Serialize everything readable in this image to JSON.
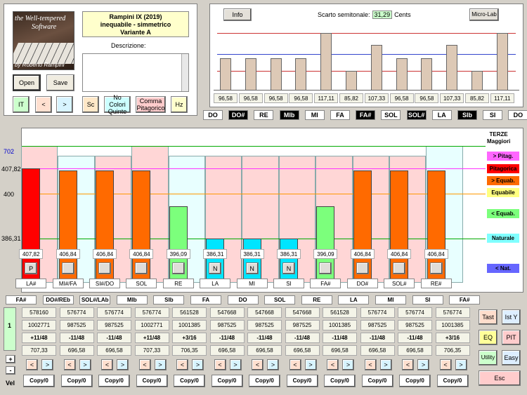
{
  "header": {
    "logo_line1": "the Well-tempered",
    "logo_line2": "Software",
    "logo_author": "by Roberto Rampini",
    "title_line1": "Rampini IX (2019)",
    "title_line2": "inequabile - simmetrico",
    "title_line3": "Variante A",
    "desc_label": "Descrizione:"
  },
  "buttons": {
    "open": "Open",
    "save": "Save",
    "it": "IT",
    "prev": "<",
    "next": ">",
    "sc": "Sc",
    "no_colori_1": "No Colori",
    "no_colori_2": "Quinte",
    "comma_1": "Comma",
    "comma_2": "Pitagorico",
    "hz": "Hz",
    "info": "Info",
    "microlab": "Micro-Lab",
    "tast": "Tast",
    "isty": "Ist Y",
    "eq": "EQ",
    "pit": "PIT",
    "utility": "Utility",
    "easy": "Easy",
    "esc": "Esc",
    "plus": "+",
    "minus": "-",
    "vel": "Vel"
  },
  "top_chart": {
    "scarto_label": "Scarto semitonale:",
    "scarto_value": "31,29",
    "scarto_unit": "Cents",
    "values": [
      "96,58",
      "96,58",
      "96,58",
      "96,58",
      "117,11",
      "85,82",
      "107,33",
      "96,58",
      "96,58",
      "107,33",
      "85,82",
      "117,11"
    ],
    "heights": [
      96.58,
      96.58,
      96.58,
      96.58,
      117.11,
      85.82,
      107.33,
      96.58,
      96.58,
      107.33,
      85.82,
      117.11
    ],
    "notes": [
      {
        "name": "DO",
        "dark": false
      },
      {
        "name": "DO#",
        "dark": true
      },
      {
        "name": "RE",
        "dark": false
      },
      {
        "name": "MIb",
        "dark": true
      },
      {
        "name": "MI",
        "dark": false
      },
      {
        "name": "FA",
        "dark": false
      },
      {
        "name": "FA#",
        "dark": true
      },
      {
        "name": "SOL",
        "dark": false
      },
      {
        "name": "SOL#",
        "dark": true
      },
      {
        "name": "LA",
        "dark": false
      },
      {
        "name": "SIb",
        "dark": true
      },
      {
        "name": "SI",
        "dark": false
      },
      {
        "name": "DO",
        "dark": false
      }
    ]
  },
  "main_chart": {
    "y_labels": {
      "v702": "702",
      "v40782": "407,82",
      "v400": "400",
      "v38631": "386,31"
    },
    "legend": {
      "terze_1": "TERZE",
      "terze_2": "Maggiori",
      "pitag_plus": "> Pitag.",
      "pitagorica": "Pitagorica",
      "equab_plus": "> Equab.",
      "equabile": "Equabile",
      "equab_minus": "< Equab.",
      "naturale": "Naturale",
      "nat_minus": "< Nat."
    },
    "bars": [
      {
        "value": "407,82",
        "height": 407.82,
        "color": "#ff0000",
        "box": "P",
        "note": "LA#"
      },
      {
        "value": "406,84",
        "height": 406.84,
        "color": "#ff6a00",
        "box": "",
        "note": "MI#/FA"
      },
      {
        "value": "406,84",
        "height": 406.84,
        "color": "#ff6a00",
        "box": "",
        "note": "SI#/DO"
      },
      {
        "value": "406,84",
        "height": 406.84,
        "color": "#ff6a00",
        "box": "",
        "note": "SOL"
      },
      {
        "value": "396,09",
        "height": 396.09,
        "color": "#7cff7c",
        "box": "",
        "note": "RE"
      },
      {
        "value": "386,31",
        "height": 386.31,
        "color": "#00e5ff",
        "box": "N",
        "note": "LA"
      },
      {
        "value": "386,31",
        "height": 386.31,
        "color": "#00e5ff",
        "box": "N",
        "note": "MI"
      },
      {
        "value": "386,31",
        "height": 386.31,
        "color": "#00e5ff",
        "box": "N",
        "note": "SI"
      },
      {
        "value": "396,09",
        "height": 396.09,
        "color": "#7cff7c",
        "box": "",
        "note": "FA#"
      },
      {
        "value": "406,84",
        "height": 406.84,
        "color": "#ff6a00",
        "box": "",
        "note": "DO#"
      },
      {
        "value": "406,84",
        "height": 406.84,
        "color": "#ff6a00",
        "box": "",
        "note": "SOL#"
      },
      {
        "value": "406,84",
        "height": 406.84,
        "color": "#ff6a00",
        "box": "",
        "note": "RE#"
      }
    ],
    "bg": [
      "#ffd6d6",
      "#e8ffff",
      "#ffd6d6",
      "#ffd6d6",
      "#e8ffff",
      "#ffd6d6",
      "#ffd6d6",
      "#ffd6d6",
      "#ffd6d6",
      "#ffd6d6",
      "#ffd6d6",
      "#e8ffff"
    ],
    "bg_heights": [
      702,
      680,
      680,
      702,
      680,
      680,
      680,
      680,
      680,
      680,
      680,
      702
    ]
  },
  "bottom_notes": [
    "FA#",
    "DO#/REb",
    "SOL#/LAb",
    "MIb",
    "SIb",
    "FA",
    "DO",
    "SOL",
    "RE",
    "LA",
    "MI",
    "SI",
    "FA#"
  ],
  "table": {
    "row1": [
      "578160",
      "576774",
      "576774",
      "576774",
      "561528",
      "547668",
      "547668",
      "547668",
      "561528",
      "576774",
      "576774",
      "576774"
    ],
    "row2": [
      "1002771",
      "987525",
      "987525",
      "1002771",
      "1001385",
      "987525",
      "987525",
      "987525",
      "1001385",
      "987525",
      "987525",
      "1001385"
    ],
    "row3": [
      "+11/48",
      "-11/48",
      "-11/48",
      "+11/48",
      "+3/16",
      "-11/48",
      "-11/48",
      "-11/48",
      "-11/48",
      "-11/48",
      "-11/48",
      "+3/16"
    ],
    "row4": [
      "707,33",
      "696,58",
      "696,58",
      "707,33",
      "706,35",
      "696,58",
      "696,58",
      "696,58",
      "696,58",
      "696,58",
      "696,58",
      "706,35"
    ],
    "copy": "Copy/0",
    "row_index": "1"
  }
}
